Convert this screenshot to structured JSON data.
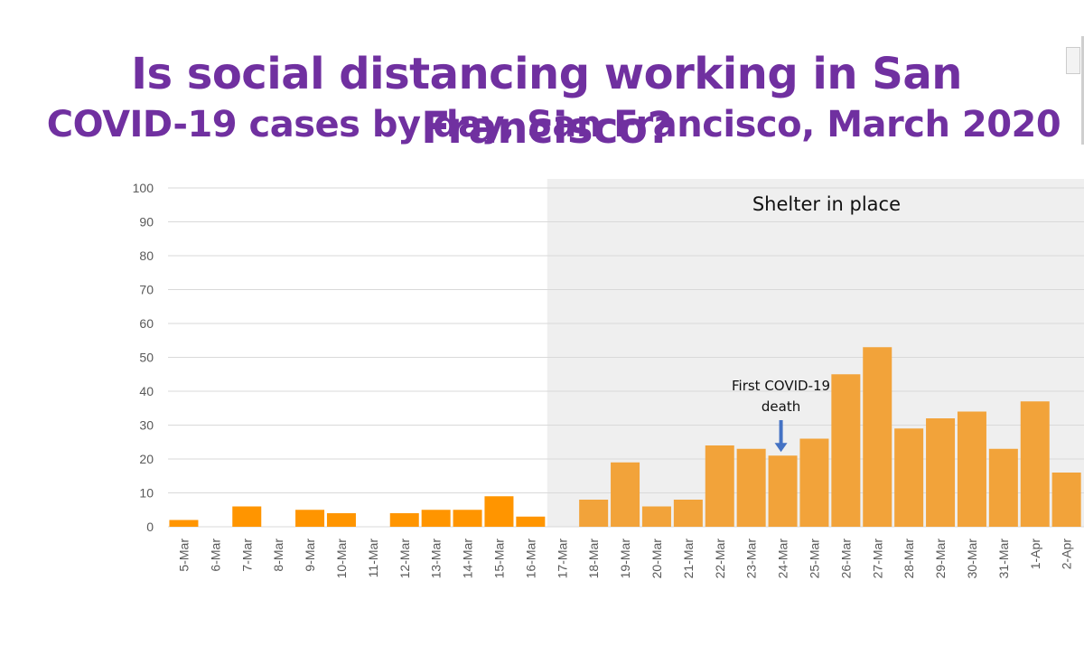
{
  "slide": {
    "title": "Is social distancing working in San Francisco?",
    "subtitle": "COVID-19 cases by day, San Francisco, March 2020"
  },
  "colors": {
    "title": "#7030a0",
    "bar_pre": "#ff9500",
    "bar_post": "#f2a33a",
    "shade": "#efefef",
    "arrow": "#4472c4",
    "grid": "#d9d9d9",
    "tick": "#595959"
  },
  "chart_data": {
    "type": "bar",
    "title": "COVID-19 cases by day, San Francisco, March 2020",
    "xlabel": "",
    "ylabel": "",
    "ylim": [
      0,
      100
    ],
    "yticks": [
      0,
      10,
      20,
      30,
      40,
      50,
      60,
      70,
      80,
      90,
      100
    ],
    "grid": true,
    "categories": [
      "5-Mar",
      "6-Mar",
      "7-Mar",
      "8-Mar",
      "9-Mar",
      "10-Mar",
      "11-Mar",
      "12-Mar",
      "13-Mar",
      "14-Mar",
      "15-Mar",
      "16-Mar",
      "17-Mar",
      "18-Mar",
      "19-Mar",
      "20-Mar",
      "21-Mar",
      "22-Mar",
      "23-Mar",
      "24-Mar",
      "25-Mar",
      "26-Mar",
      "27-Mar",
      "28-Mar",
      "29-Mar",
      "30-Mar",
      "31-Mar",
      "1-Apr",
      "2-Apr"
    ],
    "values": [
      2,
      0,
      6,
      0,
      5,
      4,
      0,
      4,
      5,
      5,
      9,
      3,
      0,
      8,
      19,
      6,
      8,
      24,
      23,
      21,
      26,
      45,
      53,
      29,
      32,
      34,
      23,
      37,
      16
    ],
    "shelter_region": {
      "label": "Shelter in place",
      "start_category": "17-Mar"
    },
    "annotation": {
      "line1": "First COVID-19",
      "line2": "death",
      "category": "24-Mar"
    }
  }
}
